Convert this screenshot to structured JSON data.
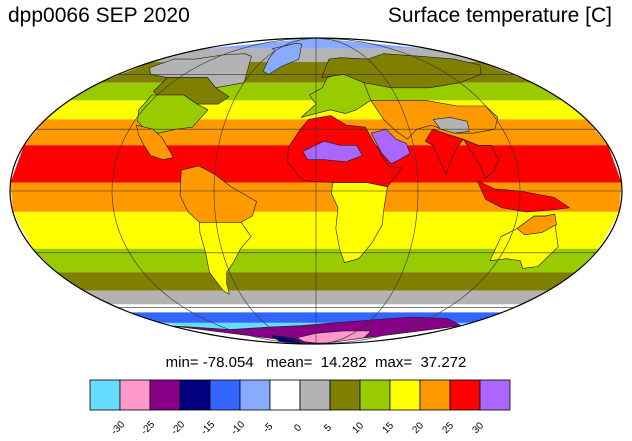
{
  "header": {
    "run_label": "dpp0066 SEP 2020",
    "variable_label": "Surface temperature [C]"
  },
  "stats": {
    "min_label": "min=",
    "min_value": "-78.054",
    "mean_label": "mean=",
    "mean_value": "14.282",
    "max_label": "max=",
    "max_value": "37.272"
  },
  "colorbar": {
    "colors": [
      "#66ddff",
      "#ff99cc",
      "#880088",
      "#000080",
      "#3366ff",
      "#88aaff",
      "#ffffff",
      "#b3b3b3",
      "#808000",
      "#99cc00",
      "#ffff00",
      "#ff9900",
      "#ff0000",
      "#aa66ff"
    ],
    "tick_labels": [
      "-30",
      "-25",
      "-20",
      "-15",
      "-10",
      "-5",
      "0",
      "5",
      "10",
      "15",
      "20",
      "25",
      "30"
    ]
  },
  "map": {
    "projection": "Mollweide",
    "zonal_bands": [
      {
        "lat_min": 78,
        "lat_max": 90,
        "color": "#88aaff"
      },
      {
        "lat_min": 68,
        "lat_max": 78,
        "color": "#b3b3b3"
      },
      {
        "lat_min": 55,
        "lat_max": 68,
        "color": "#808000"
      },
      {
        "lat_min": 45,
        "lat_max": 55,
        "color": "#99cc00"
      },
      {
        "lat_min": 35,
        "lat_max": 45,
        "color": "#ffff00"
      },
      {
        "lat_min": 22,
        "lat_max": 35,
        "color": "#ff9900"
      },
      {
        "lat_min": 4,
        "lat_max": 22,
        "color": "#ff0000"
      },
      {
        "lat_min": -10,
        "lat_max": 4,
        "color": "#ff9900"
      },
      {
        "lat_min": -28,
        "lat_max": -10,
        "color": "#ffff00"
      },
      {
        "lat_min": -40,
        "lat_max": -28,
        "color": "#99cc00"
      },
      {
        "lat_min": -50,
        "lat_max": -40,
        "color": "#808000"
      },
      {
        "lat_min": -58,
        "lat_max": -50,
        "color": "#b3b3b3"
      },
      {
        "lat_min": -63,
        "lat_max": -58,
        "color": "#ffffff"
      },
      {
        "lat_min": -70,
        "lat_max": -63,
        "color": "#3366ff"
      },
      {
        "lat_min": -90,
        "lat_max": -70,
        "color": "#66ddff"
      }
    ],
    "land_regions": [
      {
        "name": "greenland",
        "color": "#88aaff",
        "points": [
          [
            -45,
            83
          ],
          [
            -30,
            82
          ],
          [
            -22,
            75
          ],
          [
            -20,
            70
          ],
          [
            -35,
            65
          ],
          [
            -43,
            60
          ],
          [
            -50,
            62
          ],
          [
            -55,
            70
          ],
          [
            -60,
            76
          ],
          [
            -70,
            78
          ],
          [
            -55,
            81
          ]
        ]
      },
      {
        "name": "north-america-north",
        "color": "#b3b3b3",
        "points": [
          [
            -165,
            70
          ],
          [
            -140,
            70
          ],
          [
            -120,
            73
          ],
          [
            -95,
            74
          ],
          [
            -80,
            72
          ],
          [
            -65,
            62
          ],
          [
            -60,
            55
          ],
          [
            -80,
            52
          ],
          [
            -95,
            58
          ],
          [
            -110,
            58
          ],
          [
            -130,
            58
          ],
          [
            -150,
            60
          ],
          [
            -165,
            64
          ]
        ]
      },
      {
        "name": "north-america-mid",
        "color": "#808000",
        "points": [
          [
            -130,
            58
          ],
          [
            -110,
            58
          ],
          [
            -95,
            58
          ],
          [
            -80,
            52
          ],
          [
            -65,
            47
          ],
          [
            -70,
            43
          ],
          [
            -85,
            43
          ],
          [
            -100,
            48
          ],
          [
            -120,
            48
          ],
          [
            -126,
            50
          ]
        ]
      },
      {
        "name": "north-america-south",
        "color": "#99cc00",
        "points": [
          [
            -124,
            48
          ],
          [
            -100,
            48
          ],
          [
            -85,
            43
          ],
          [
            -75,
            40
          ],
          [
            -80,
            31
          ],
          [
            -90,
            30
          ],
          [
            -100,
            28
          ],
          [
            -110,
            30
          ],
          [
            -118,
            34
          ],
          [
            -123,
            40
          ]
        ]
      },
      {
        "name": "mexico",
        "color": "#ff9900",
        "points": [
          [
            -117,
            32
          ],
          [
            -105,
            30
          ],
          [
            -97,
            26
          ],
          [
            -90,
            20
          ],
          [
            -86,
            16
          ],
          [
            -92,
            15
          ],
          [
            -100,
            17
          ],
          [
            -106,
            22
          ],
          [
            -112,
            27
          ]
        ]
      },
      {
        "name": "south-america-north",
        "color": "#ff9900",
        "points": [
          [
            -80,
            10
          ],
          [
            -70,
            12
          ],
          [
            -60,
            8
          ],
          [
            -50,
            2
          ],
          [
            -35,
            -5
          ],
          [
            -38,
            -12
          ],
          [
            -45,
            -15
          ],
          [
            -60,
            -15
          ],
          [
            -70,
            -15
          ],
          [
            -76,
            -10
          ],
          [
            -80,
            -2
          ]
        ]
      },
      {
        "name": "south-america-south",
        "color": "#ffff00",
        "points": [
          [
            -70,
            -15
          ],
          [
            -60,
            -15
          ],
          [
            -45,
            -15
          ],
          [
            -40,
            -22
          ],
          [
            -48,
            -28
          ],
          [
            -55,
            -35
          ],
          [
            -62,
            -40
          ],
          [
            -66,
            -46
          ],
          [
            -69,
            -52
          ],
          [
            -72,
            -50
          ],
          [
            -74,
            -40
          ],
          [
            -71,
            -30
          ],
          [
            -71,
            -20
          ]
        ]
      },
      {
        "name": "africa-north",
        "color": "#ff0000",
        "points": [
          [
            -17,
            21
          ],
          [
            -10,
            30
          ],
          [
            -5,
            35
          ],
          [
            10,
            37
          ],
          [
            20,
            32
          ],
          [
            32,
            31
          ],
          [
            35,
            25
          ],
          [
            43,
            12
          ],
          [
            51,
            11
          ],
          [
            42,
            2
          ],
          [
            30,
            4
          ],
          [
            10,
            4
          ],
          [
            -8,
            5
          ],
          [
            -17,
            14
          ]
        ]
      },
      {
        "name": "sahara-hot",
        "color": "#aa66ff",
        "points": [
          [
            -8,
            19
          ],
          [
            5,
            24
          ],
          [
            15,
            22
          ],
          [
            25,
            22
          ],
          [
            28,
            17
          ],
          [
            18,
            14
          ],
          [
            5,
            15
          ],
          [
            -5,
            15
          ]
        ]
      },
      {
        "name": "africa-south",
        "color": "#ffff00",
        "points": [
          [
            10,
            4
          ],
          [
            30,
            4
          ],
          [
            42,
            2
          ],
          [
            40,
            -10
          ],
          [
            40,
            -16
          ],
          [
            35,
            -25
          ],
          [
            28,
            -33
          ],
          [
            19,
            -35
          ],
          [
            15,
            -28
          ],
          [
            12,
            -18
          ],
          [
            13,
            -8
          ],
          [
            9,
            -1
          ]
        ]
      },
      {
        "name": "europe",
        "color": "#99cc00",
        "points": [
          [
            -10,
            36
          ],
          [
            0,
            43
          ],
          [
            -5,
            48
          ],
          [
            5,
            52
          ],
          [
            10,
            58
          ],
          [
            20,
            60
          ],
          [
            30,
            60
          ],
          [
            40,
            55
          ],
          [
            40,
            45
          ],
          [
            28,
            40
          ],
          [
            20,
            38
          ],
          [
            10,
            40
          ]
        ]
      },
      {
        "name": "scandinavia-russia",
        "color": "#808000",
        "points": [
          [
            5,
            58
          ],
          [
            15,
            70
          ],
          [
            30,
            71
          ],
          [
            60,
            70
          ],
          [
            90,
            74
          ],
          [
            130,
            72
          ],
          [
            160,
            70
          ],
          [
            170,
            66
          ],
          [
            150,
            60
          ],
          [
            120,
            55
          ],
          [
            90,
            52
          ],
          [
            60,
            52
          ],
          [
            40,
            55
          ],
          [
            25,
            60
          ]
        ]
      },
      {
        "name": "arabia",
        "color": "#aa66ff",
        "points": [
          [
            35,
            28
          ],
          [
            45,
            30
          ],
          [
            50,
            25
          ],
          [
            56,
            23
          ],
          [
            57,
            18
          ],
          [
            50,
            15
          ],
          [
            45,
            13
          ],
          [
            40,
            18
          ]
        ]
      },
      {
        "name": "middle-east-asia",
        "color": "#ff9900",
        "points": [
          [
            40,
            45
          ],
          [
            60,
            45
          ],
          [
            80,
            45
          ],
          [
            100,
            42
          ],
          [
            120,
            42
          ],
          [
            122,
            36
          ],
          [
            115,
            30
          ],
          [
            100,
            28
          ],
          [
            88,
            28
          ],
          [
            75,
            32
          ],
          [
            65,
            30
          ],
          [
            57,
            25
          ],
          [
            50,
            30
          ],
          [
            45,
            35
          ]
        ]
      },
      {
        "name": "tibet",
        "color": "#b3b3b3",
        "points": [
          [
            78,
            35
          ],
          [
            90,
            36
          ],
          [
            100,
            34
          ],
          [
            98,
            29
          ],
          [
            88,
            28
          ],
          [
            80,
            30
          ]
        ]
      },
      {
        "name": "india",
        "color": "#ff0000",
        "points": [
          [
            68,
            24
          ],
          [
            72,
            22
          ],
          [
            77,
            8
          ],
          [
            82,
            16
          ],
          [
            88,
            22
          ],
          [
            92,
            25
          ],
          [
            85,
            27
          ],
          [
            75,
            30
          ]
        ]
      },
      {
        "name": "southeast-asia",
        "color": "#ff0000",
        "points": [
          [
            92,
            25
          ],
          [
            100,
            22
          ],
          [
            108,
            22
          ],
          [
            110,
            15
          ],
          [
            105,
            9
          ],
          [
            100,
            6
          ],
          [
            98,
            12
          ],
          [
            95,
            18
          ]
        ]
      },
      {
        "name": "indonesia",
        "color": "#ff0000",
        "points": [
          [
            95,
            5
          ],
          [
            105,
            1
          ],
          [
            120,
            0
          ],
          [
            140,
            -3
          ],
          [
            150,
            -8
          ],
          [
            140,
            -9
          ],
          [
            125,
            -10
          ],
          [
            110,
            -8
          ],
          [
            100,
            -4
          ]
        ]
      },
      {
        "name": "australia",
        "color": "#ffff00",
        "points": [
          [
            114,
            -22
          ],
          [
            122,
            -18
          ],
          [
            130,
            -12
          ],
          [
            137,
            -12
          ],
          [
            142,
            -11
          ],
          [
            146,
            -19
          ],
          [
            153,
            -27
          ],
          [
            150,
            -37
          ],
          [
            141,
            -38
          ],
          [
            135,
            -34
          ],
          [
            125,
            -33
          ],
          [
            115,
            -34
          ],
          [
            114,
            -28
          ]
        ]
      },
      {
        "name": "australia-north",
        "color": "#ff9900",
        "points": [
          [
            122,
            -18
          ],
          [
            130,
            -12
          ],
          [
            137,
            -12
          ],
          [
            142,
            -11
          ],
          [
            145,
            -16
          ],
          [
            138,
            -20
          ],
          [
            128,
            -21
          ]
        ]
      },
      {
        "name": "antarctica",
        "color": "#880088",
        "points": [
          [
            -180,
            -72
          ],
          [
            -120,
            -75
          ],
          [
            -60,
            -73
          ],
          [
            -20,
            -72
          ],
          [
            20,
            -70
          ],
          [
            60,
            -68
          ],
          [
            100,
            -66
          ],
          [
            140,
            -67
          ],
          [
            180,
            -72
          ],
          [
            180,
            -90
          ],
          [
            -180,
            -90
          ]
        ]
      },
      {
        "name": "antarctica-interior",
        "color": "#ff99cc",
        "points": [
          [
            -40,
            -82
          ],
          [
            0,
            -78
          ],
          [
            40,
            -76
          ],
          [
            80,
            -76
          ],
          [
            100,
            -82
          ],
          [
            60,
            -88
          ],
          [
            0,
            -88
          ],
          [
            -40,
            -86
          ]
        ]
      },
      {
        "name": "antarctica-core",
        "color": "#000080",
        "points": [
          [
            -120,
            -86
          ],
          [
            -80,
            -80
          ],
          [
            -50,
            -82
          ],
          [
            -70,
            -88
          ],
          [
            -110,
            -89
          ]
        ]
      }
    ]
  }
}
